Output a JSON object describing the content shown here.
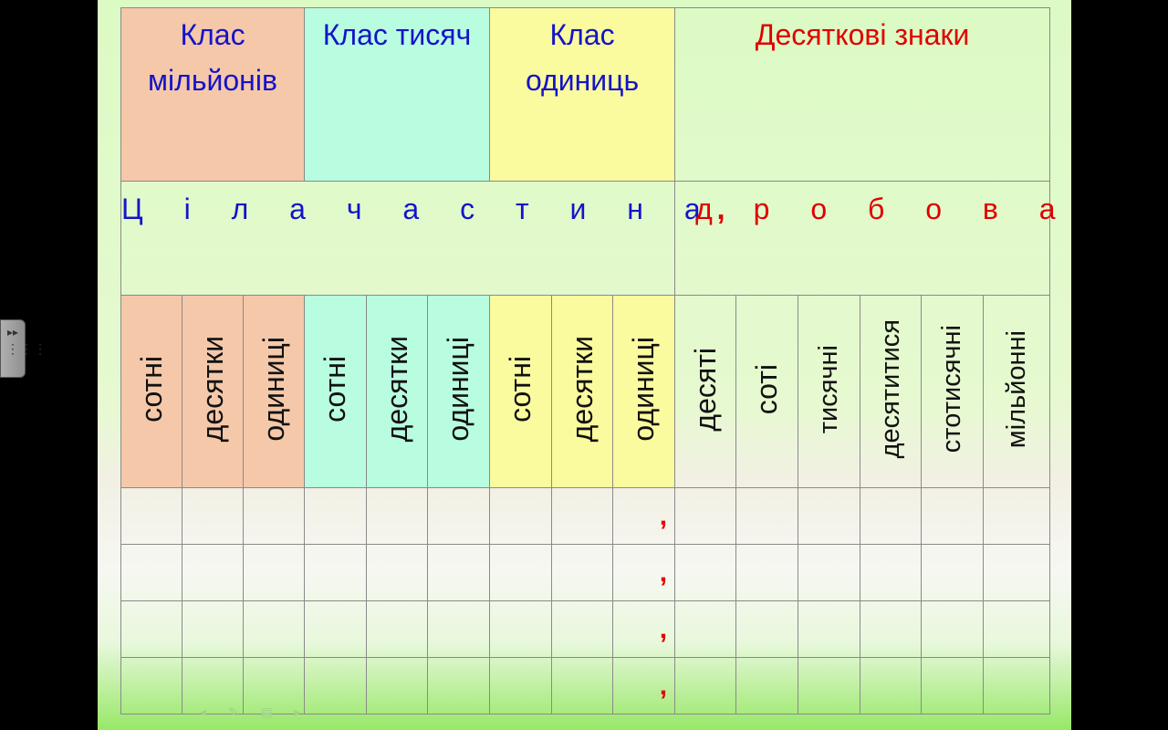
{
  "class_headers": {
    "millions": "Клас мільйонів",
    "thousands": "Клас тисяч",
    "units": "Клас одиниць",
    "decimal": "Десяткові знаки"
  },
  "parts": {
    "integer": "Ц і л а   ч а с т и н а",
    "comma": ",",
    "fraction": "д р о б о в а"
  },
  "place_names": [
    "сотні",
    "десятки",
    "одиниці",
    "сотні",
    "десятки",
    "одиниці",
    "сотні",
    "десятки",
    "одиниці",
    "десяті",
    "соті",
    "тисячні",
    "десятитися",
    "стотисячні",
    "мільйонні"
  ],
  "row_commas": [
    ",",
    ",",
    ",",
    ","
  ],
  "colors": {
    "millions_bg": "#f5c8aa",
    "thousands_bg": "#b8fde0",
    "units_bg": "#fafa9e",
    "integer_text": "#1414c8",
    "fraction_text": "#e00000"
  },
  "icons": {
    "side_tab": "expand-panel-icon",
    "nav": [
      "prev-arrow-icon",
      "pen-icon",
      "menu-icon",
      "next-arrow-icon"
    ]
  },
  "nav_glyphs": "◂ ✎ ▤ ▸"
}
